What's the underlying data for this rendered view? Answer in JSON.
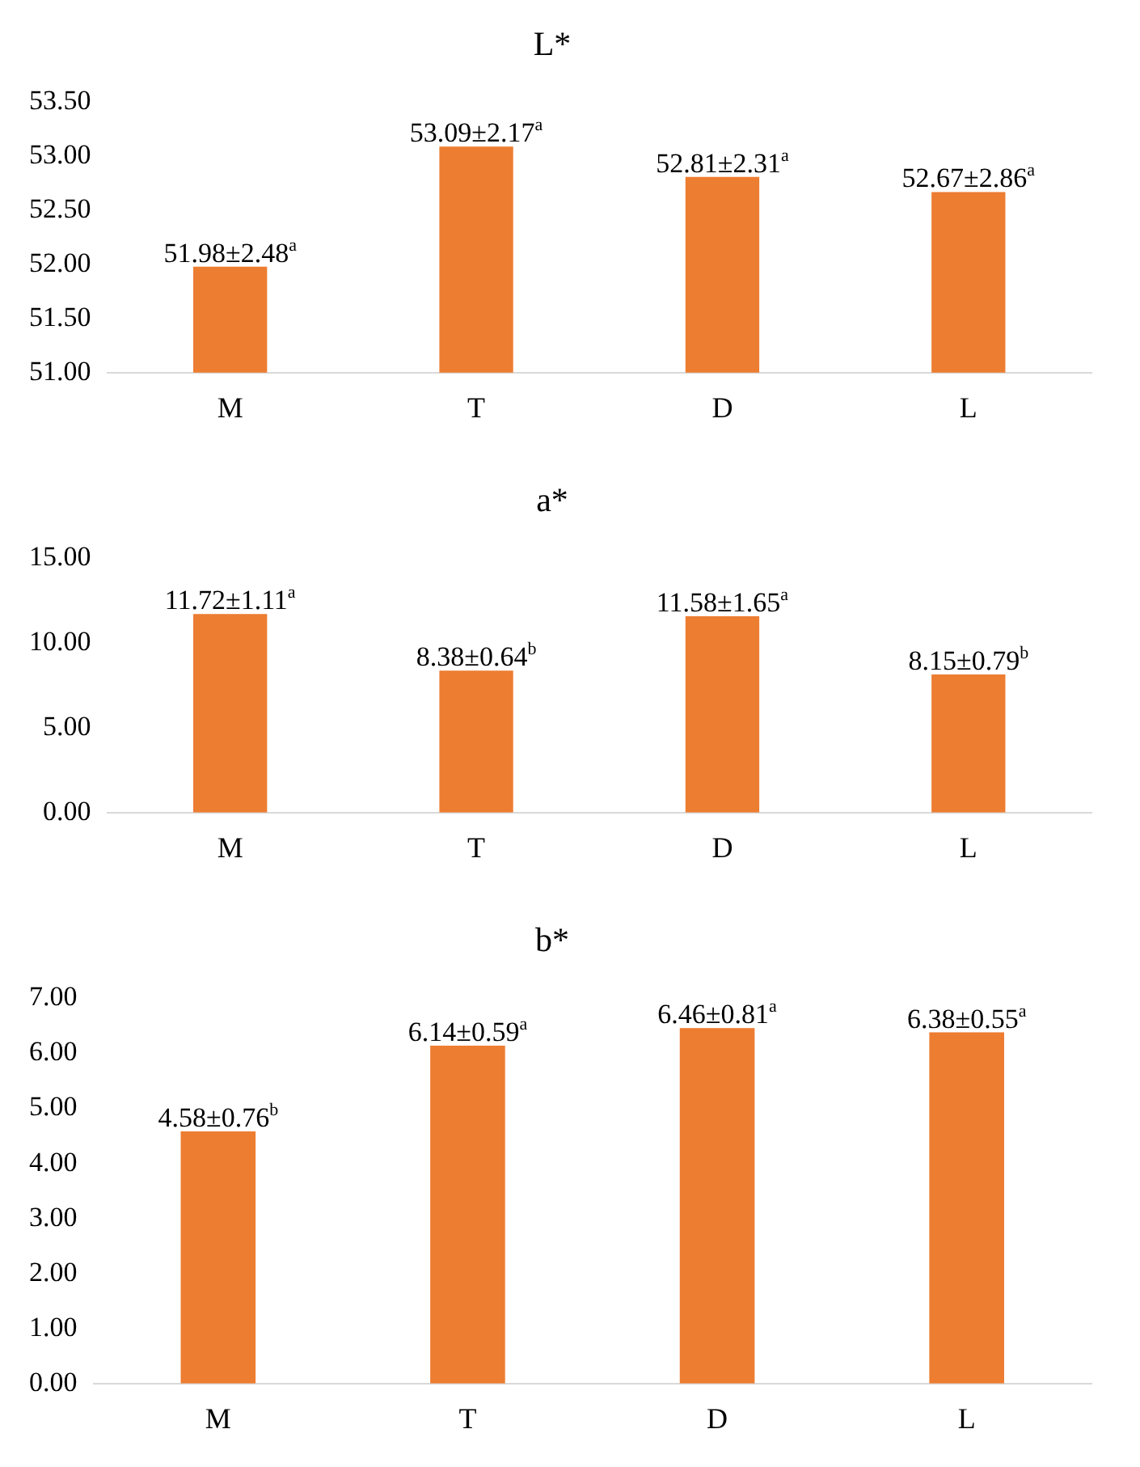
{
  "chart_data": [
    {
      "type": "bar",
      "title": "L*",
      "categories": [
        "M",
        "T",
        "D",
        "L"
      ],
      "values": [
        51.98,
        53.09,
        52.81,
        52.67
      ],
      "color": "#ed7d31",
      "value_labels": [
        "51.98±2.48$^{a}$",
        "53.09±2.17$^{a}$",
        "52.81±2.31$^{a}$",
        "52.67±2.86$^{a}$"
      ],
      "ylim": [
        51,
        53.5
      ],
      "yticks": [
        {
          "value": 51,
          "label": "51.00"
        },
        {
          "value": 51.5,
          "label": "51.50"
        },
        {
          "value": 52,
          "label": "52.00"
        },
        {
          "value": 52.5,
          "label": "52.50"
        },
        {
          "value": 53,
          "label": "53.00"
        },
        {
          "value": 53.5,
          "label": "53.50"
        }
      ],
      "grid": false,
      "legend": false
    },
    {
      "type": "bar",
      "title": "a*",
      "categories": [
        "M",
        "T",
        "D",
        "L"
      ],
      "values": [
        11.72,
        8.38,
        11.58,
        8.15
      ],
      "color": "#ed7d31",
      "value_labels": [
        "11.72±1.11$^{a}$",
        "8.38±0.64$^{b}$",
        "11.58±1.65$^{a}$",
        "8.15±0.79$^{b}$"
      ],
      "ylim": [
        0,
        15
      ],
      "yticks": [
        {
          "value": 0,
          "label": "0.00"
        },
        {
          "value": 5,
          "label": "5.00"
        },
        {
          "value": 10,
          "label": "10.00"
        },
        {
          "value": 15,
          "label": "15.00"
        }
      ],
      "grid": false,
      "legend": false
    },
    {
      "type": "bar",
      "title": "b*",
      "categories": [
        "M",
        "T",
        "D",
        "L"
      ],
      "values": [
        4.58,
        6.14,
        6.46,
        6.38
      ],
      "color": "#ed7d31",
      "value_labels": [
        "4.58±0.76$^{b}$",
        "6.14±0.59$^{a}$",
        "6.46±0.81$^{a}$",
        "6.38±0.55$^{a}$"
      ],
      "ylim": [
        0,
        7
      ],
      "yticks": [
        {
          "value": 0,
          "label": "0.00"
        },
        {
          "value": 1,
          "label": "1.00"
        },
        {
          "value": 2,
          "label": "2.00"
        },
        {
          "value": 3,
          "label": "3.00"
        },
        {
          "value": 4,
          "label": "4.00"
        },
        {
          "value": 5,
          "label": "5.00"
        },
        {
          "value": 6,
          "label": "6.00"
        },
        {
          "value": 7,
          "label": "7.00"
        }
      ],
      "grid": false,
      "legend": false
    }
  ]
}
